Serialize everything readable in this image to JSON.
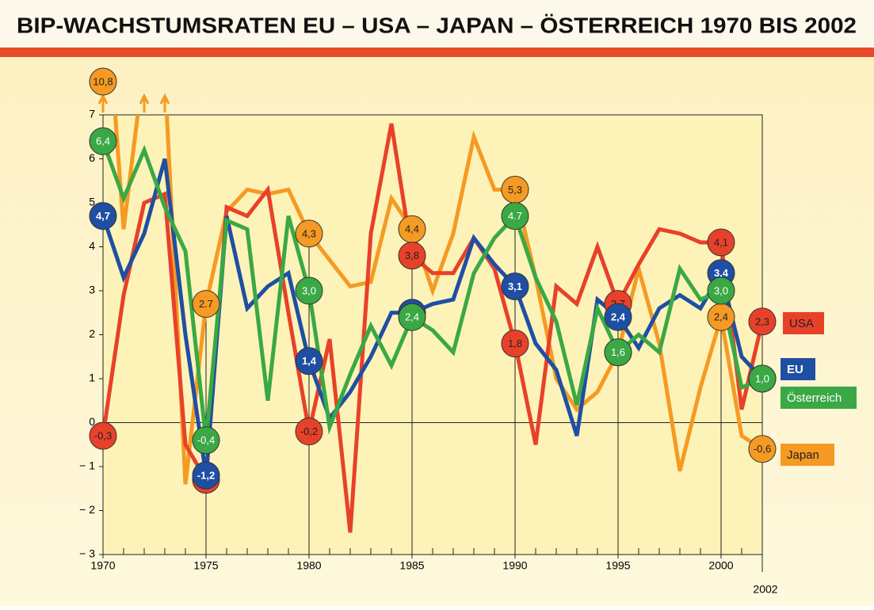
{
  "chart_data": {
    "type": "line",
    "title": "BIP-WACHSTUMSRATEN EU – USA – JAPAN – ÖSTERREICH 1970 BIS 2002",
    "x": [
      1970,
      1971,
      1972,
      1973,
      1974,
      1975,
      1976,
      1977,
      1978,
      1979,
      1980,
      1981,
      1982,
      1983,
      1984,
      1985,
      1986,
      1987,
      1988,
      1989,
      1990,
      1991,
      1992,
      1993,
      1994,
      1995,
      1996,
      1997,
      1998,
      1999,
      2000,
      2001,
      2002
    ],
    "xlim": [
      1970,
      2002
    ],
    "xticks": [
      1970,
      1975,
      1980,
      1985,
      1990,
      1995,
      2000,
      2002
    ],
    "ylim": [
      -3,
      7
    ],
    "yticks": [
      {
        "value": -3,
        "label": "− 3"
      },
      {
        "value": -2,
        "label": "− 2"
      },
      {
        "value": -1,
        "label": "− 1"
      },
      0,
      1,
      2,
      3,
      4,
      5,
      6,
      7
    ],
    "series": [
      {
        "name": "Japan",
        "color": "#f59a23",
        "values": [
          10.8,
          4.4,
          8.2,
          7.9,
          -1.4,
          2.7,
          4.8,
          5.3,
          5.2,
          5.3,
          4.3,
          3.7,
          3.1,
          3.2,
          5.1,
          4.4,
          3.0,
          4.3,
          6.5,
          5.3,
          5.3,
          3.3,
          1.0,
          0.3,
          0.7,
          1.6,
          3.5,
          1.8,
          -1.1,
          0.8,
          2.4,
          -0.3,
          -0.6
        ],
        "value_labels": [
          "10,8",
          null,
          null,
          null,
          null,
          "2.7",
          null,
          null,
          null,
          null,
          "4,3",
          null,
          null,
          null,
          null,
          "4,4",
          null,
          null,
          null,
          null,
          "5,3",
          null,
          null,
          null,
          null,
          "1,6",
          null,
          null,
          null,
          null,
          "2,4",
          null,
          "-0,6"
        ]
      },
      {
        "name": "USA",
        "color": "#e8412a",
        "values": [
          -0.3,
          2.9,
          5.0,
          5.2,
          -0.5,
          -1.3,
          4.9,
          4.7,
          5.3,
          2.5,
          -0.2,
          1.9,
          -2.5,
          4.3,
          6.8,
          3.8,
          3.4,
          3.4,
          4.2,
          3.5,
          1.8,
          -0.5,
          3.1,
          2.7,
          4.0,
          2.7,
          3.6,
          4.4,
          4.3,
          4.1,
          4.1,
          0.3,
          2.3
        ],
        "value_labels": [
          "-0,3",
          null,
          null,
          null,
          null,
          "-1,3",
          null,
          null,
          null,
          null,
          "-0,2",
          null,
          null,
          null,
          null,
          "3,8",
          null,
          null,
          null,
          null,
          "1,8",
          null,
          null,
          null,
          null,
          "2,7",
          null,
          null,
          null,
          null,
          "4,1",
          null,
          "2,3"
        ]
      },
      {
        "name": "EU",
        "color": "#1f4fa3",
        "values": [
          4.7,
          3.3,
          4.3,
          6.0,
          2.0,
          -1.2,
          4.7,
          2.6,
          3.1,
          3.4,
          1.4,
          0.1,
          0.7,
          1.5,
          2.5,
          2.5,
          2.7,
          2.8,
          4.2,
          3.6,
          3.1,
          1.8,
          1.2,
          -0.3,
          2.8,
          2.4,
          1.7,
          2.6,
          2.9,
          2.6,
          3.4,
          1.5,
          1.0
        ],
        "value_labels": [
          "4,7",
          null,
          null,
          null,
          null,
          "-1,2",
          null,
          null,
          null,
          null,
          "1,4",
          null,
          null,
          null,
          null,
          "2,5",
          null,
          null,
          null,
          null,
          "3,1",
          null,
          null,
          null,
          null,
          "2,4",
          null,
          null,
          null,
          null,
          "3,4",
          null,
          "1,0"
        ]
      },
      {
        "name": "Österreich",
        "color": "#3aa845",
        "values": [
          6.4,
          5.1,
          6.2,
          4.9,
          3.9,
          -0.4,
          4.6,
          4.4,
          0.5,
          4.7,
          3.0,
          -0.1,
          1.1,
          2.2,
          1.3,
          2.4,
          2.1,
          1.6,
          3.4,
          4.2,
          4.7,
          3.3,
          2.3,
          0.4,
          2.6,
          1.6,
          2.0,
          1.6,
          3.5,
          2.8,
          3.0,
          0.8,
          1.0
        ],
        "value_labels": [
          "6,4",
          null,
          null,
          null,
          null,
          "-0,4",
          null,
          null,
          null,
          null,
          "3,0",
          null,
          null,
          null,
          null,
          "2,4",
          null,
          null,
          null,
          null,
          "4.7",
          null,
          null,
          null,
          null,
          "1,6",
          null,
          null,
          null,
          null,
          "3,0",
          null,
          "1,0"
        ]
      }
    ]
  }
}
